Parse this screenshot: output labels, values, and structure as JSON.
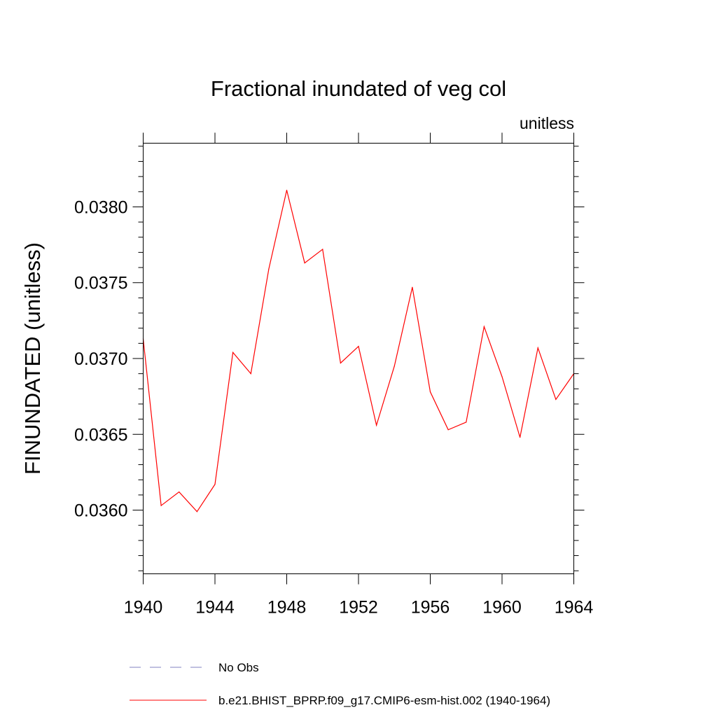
{
  "chart_data": {
    "type": "line",
    "title": "Fractional inundated of veg col",
    "subtitle_right": "unitless",
    "xlabel": "",
    "ylabel": "FINUNDATED  (unitless)",
    "xlim": [
      1940,
      1964
    ],
    "ylim": [
      0.03558,
      0.03842
    ],
    "x_ticks": [
      1940,
      1944,
      1948,
      1952,
      1956,
      1960,
      1964
    ],
    "x_tick_labels": [
      "1940",
      "1944",
      "1948",
      "1952",
      "1956",
      "1960",
      "1964"
    ],
    "y_ticks": [
      0.036,
      0.0365,
      0.037,
      0.0375,
      0.038
    ],
    "y_tick_labels": [
      "0.0360",
      "0.0365",
      "0.0370",
      "0.0375",
      "0.0380"
    ],
    "y_minor_step": 0.0001,
    "series": [
      {
        "name": "b.e21.BHIST_BPRP.f09_g17.CMIP6-esm-hist.002 (1940-1964)",
        "color": "#ff0000",
        "dash": "solid",
        "x": [
          1940,
          1941,
          1942,
          1943,
          1944,
          1945,
          1946,
          1947,
          1948,
          1949,
          1950,
          1951,
          1952,
          1953,
          1954,
          1955,
          1956,
          1957,
          1958,
          1959,
          1960,
          1961,
          1962,
          1963,
          1964
        ],
        "values": [
          0.03713,
          0.03603,
          0.03612,
          0.03599,
          0.03617,
          0.03704,
          0.0369,
          0.03759,
          0.03811,
          0.03763,
          0.03772,
          0.03697,
          0.03708,
          0.03656,
          0.03695,
          0.03747,
          0.03678,
          0.03653,
          0.03658,
          0.03721,
          0.03688,
          0.03648,
          0.03707,
          0.03673,
          0.0369
        ]
      }
    ],
    "legend": [
      {
        "label": "No Obs",
        "color": "#8080c0",
        "dash": "dashed"
      },
      {
        "label": "b.e21.BHIST_BPRP.f09_g17.CMIP6-esm-hist.002 (1940-1964)",
        "color": "#ff0000",
        "dash": "solid"
      }
    ],
    "legend_position": "bottom",
    "grid": false
  }
}
